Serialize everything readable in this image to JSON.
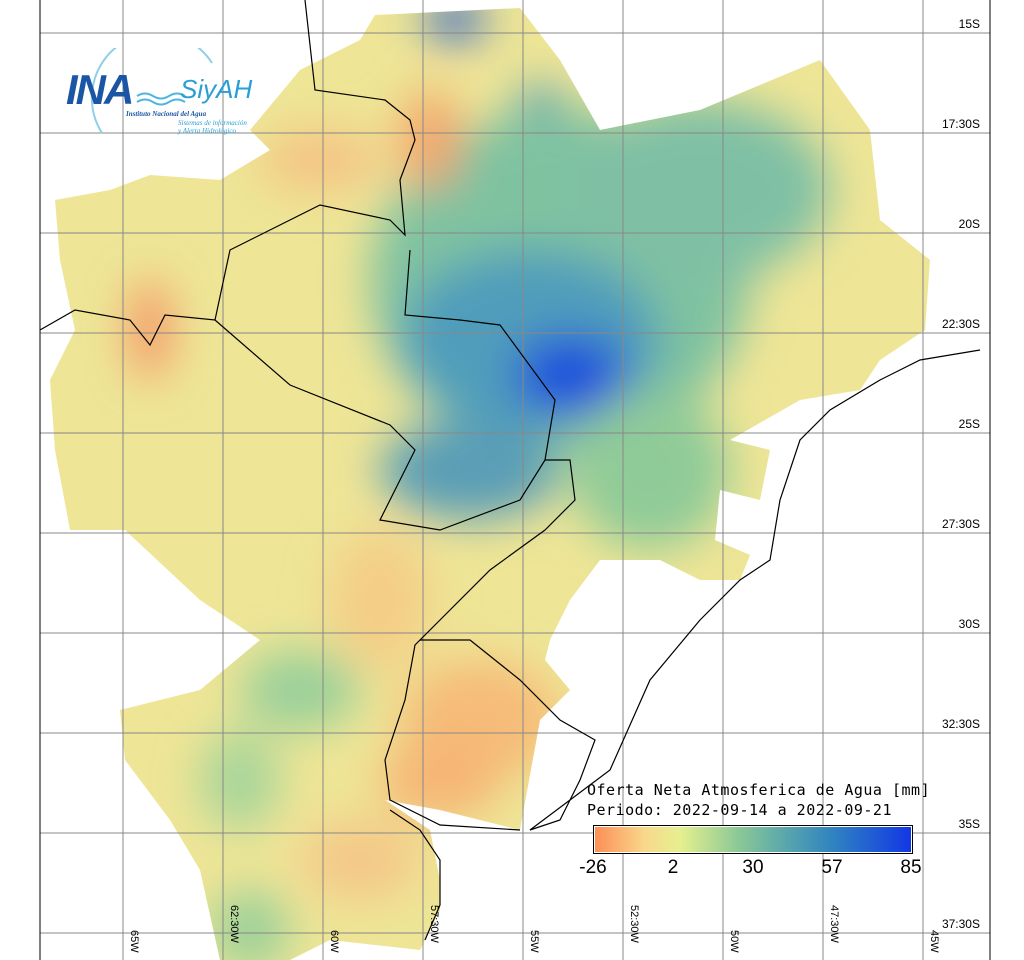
{
  "logo": {
    "ina": "INA",
    "siyah": "SiyAH",
    "institute": "Instituto Nacional del Agua",
    "system_line1": "Sistemas de información",
    "system_line2": "y Alerta Hidrológico"
  },
  "legend": {
    "title": "Oferta Neta Atmosferica de Agua [mm]",
    "period": "Periodo: 2022-09-14 a 2022-09-21",
    "ticks": [
      "-26",
      "2",
      "30",
      "57",
      "85"
    ],
    "colors": [
      "#fe8d55",
      "#f8d88c",
      "#e6f08e",
      "#8dc996",
      "#5aa7ac",
      "#2f84c0",
      "#1236e6"
    ]
  },
  "latitudes": [
    "15S",
    "17:30S",
    "20S",
    "22:30S",
    "25S",
    "27:30S",
    "30S",
    "32:30S",
    "35S",
    "37:30S"
  ],
  "longitudes": [
    "65W",
    "62:30W",
    "60W",
    "57:30W",
    "55W",
    "52:30W",
    "50W",
    "47:30W",
    "45W"
  ]
}
